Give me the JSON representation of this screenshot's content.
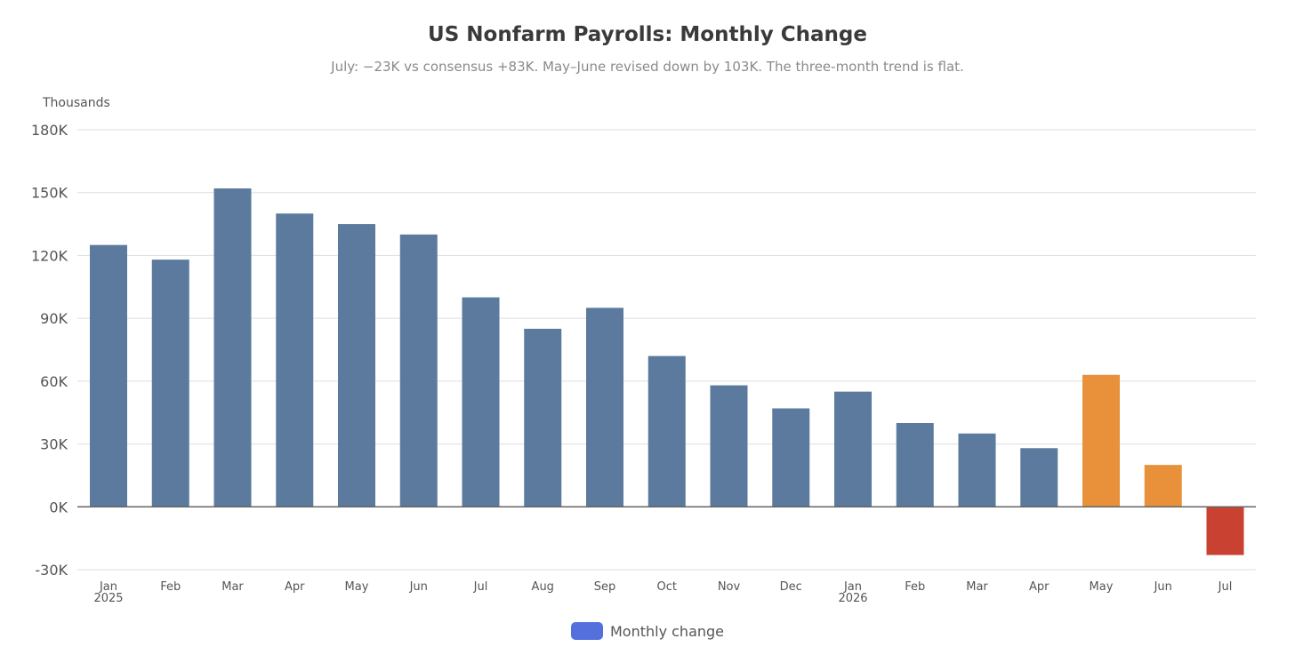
{
  "colors": {
    "bar": "#5b7a9d",
    "revised": "#e8913a",
    "negative": "#c94131",
    "grid": "#dedede",
    "zero_line": "#666666",
    "tick_text": "#555555",
    "legend_swatch": "#5470dd"
  },
  "legend": {
    "label": "Monthly change"
  },
  "chart_data": {
    "type": "bar",
    "title": "US Nonfarm Payrolls: Monthly Change",
    "subtitle": "July: −23K vs consensus +83K. May–June revised down by 103K. The three-month trend is flat.",
    "ylabel": "Thousands",
    "xlabel": "",
    "ylim": [
      -30,
      180
    ],
    "yticks": [
      -30,
      0,
      30,
      60,
      90,
      120,
      150,
      180
    ],
    "ytick_labels": [
      "-30K",
      "0K",
      "30K",
      "60K",
      "90K",
      "120K",
      "150K",
      "180K"
    ],
    "grid": true,
    "legend_position": "bottom-center",
    "categories": [
      "Jan",
      "Feb",
      "Mar",
      "Apr",
      "May",
      "Jun",
      "Jul",
      "Aug",
      "Sep",
      "Oct",
      "Nov",
      "Dec",
      "Jan",
      "Feb",
      "Mar",
      "Apr",
      "May",
      "Jun",
      "Jul"
    ],
    "category_years": [
      "2025",
      "",
      "",
      "",
      "",
      "",
      "",
      "",
      "",
      "",
      "",
      "",
      "2026",
      "",
      "",
      "",
      "",
      "",
      ""
    ],
    "series": [
      {
        "name": "Monthly change",
        "values": [
          125,
          118,
          152,
          140,
          135,
          130,
          100,
          85,
          95,
          72,
          58,
          47,
          55,
          40,
          35,
          28,
          63,
          20,
          -23
        ],
        "kinds": [
          "normal",
          "normal",
          "normal",
          "normal",
          "normal",
          "normal",
          "normal",
          "normal",
          "normal",
          "normal",
          "normal",
          "normal",
          "normal",
          "normal",
          "normal",
          "normal",
          "revised",
          "revised",
          "negative"
        ]
      }
    ]
  }
}
